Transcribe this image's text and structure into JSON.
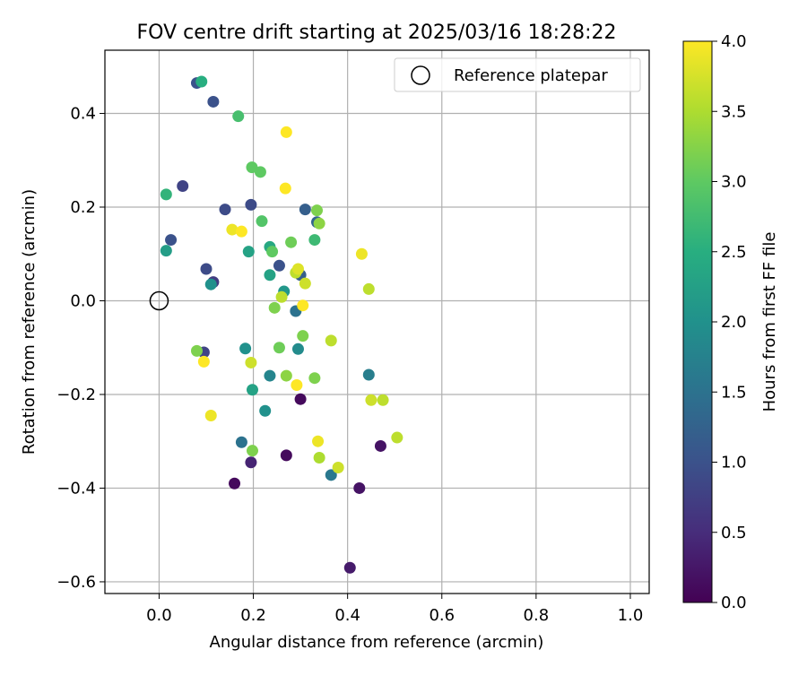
{
  "chart_data": {
    "type": "scatter",
    "title": "FOV centre drift starting at 2025/03/16 18:28:22",
    "xlabel": "Angular distance from reference (arcmin)",
    "ylabel": "Rotation from reference (arcmin)",
    "xlim": [
      -0.115,
      1.04
    ],
    "ylim": [
      -0.625,
      0.535
    ],
    "xticks": [
      0.0,
      0.2,
      0.4,
      0.6,
      0.8,
      1.0
    ],
    "xtick_labels": [
      "0.0",
      "0.2",
      "0.4",
      "0.6",
      "0.8",
      "1.0"
    ],
    "yticks": [
      -0.6,
      -0.4,
      -0.2,
      0.0,
      0.2,
      0.4
    ],
    "ytick_labels": [
      "−0.6",
      "−0.4",
      "−0.2",
      "0.0",
      "0.2",
      "0.4"
    ],
    "grid": true,
    "legend": {
      "placement": "top-right",
      "label": "Reference platepar"
    },
    "reference_point": {
      "x": 0.0,
      "y": 0.0
    },
    "colorbar": {
      "label": "Hours from first FF file",
      "colormap": "viridis",
      "range": [
        0.0,
        4.0
      ],
      "ticks": [
        0.0,
        0.5,
        1.0,
        1.5,
        2.0,
        2.5,
        3.0,
        3.5,
        4.0
      ],
      "tick_labels": [
        "0.0",
        "0.5",
        "1.0",
        "1.5",
        "2.0",
        "2.5",
        "3.0",
        "3.5",
        "4.0"
      ]
    },
    "points": [
      {
        "x": 0.405,
        "y": -0.57,
        "hours": 0.3
      },
      {
        "x": 0.16,
        "y": -0.39,
        "hours": 0.1
      },
      {
        "x": 0.425,
        "y": -0.4,
        "hours": 0.2
      },
      {
        "x": 0.195,
        "y": -0.345,
        "hours": 0.4
      },
      {
        "x": 0.27,
        "y": -0.33,
        "hours": 0.1
      },
      {
        "x": 0.3,
        "y": -0.21,
        "hours": 0.1
      },
      {
        "x": 0.47,
        "y": -0.31,
        "hours": 0.2
      },
      {
        "x": 0.08,
        "y": 0.465,
        "hours": 1.0
      },
      {
        "x": 0.115,
        "y": 0.425,
        "hours": 1.0
      },
      {
        "x": 0.05,
        "y": 0.245,
        "hours": 0.8
      },
      {
        "x": 0.14,
        "y": 0.195,
        "hours": 0.9
      },
      {
        "x": 0.195,
        "y": 0.205,
        "hours": 0.9
      },
      {
        "x": 0.025,
        "y": 0.13,
        "hours": 1.0
      },
      {
        "x": 0.1,
        "y": 0.068,
        "hours": 0.9
      },
      {
        "x": 0.115,
        "y": 0.04,
        "hours": 0.7
      },
      {
        "x": 0.095,
        "y": -0.11,
        "hours": 0.8
      },
      {
        "x": 0.255,
        "y": 0.075,
        "hours": 1.0
      },
      {
        "x": 0.31,
        "y": 0.195,
        "hours": 1.2
      },
      {
        "x": 0.3,
        "y": 0.055,
        "hours": 1.2
      },
      {
        "x": 0.335,
        "y": 0.168,
        "hours": 1.3
      },
      {
        "x": 0.29,
        "y": -0.022,
        "hours": 1.5
      },
      {
        "x": 0.365,
        "y": -0.372,
        "hours": 1.6
      },
      {
        "x": 0.175,
        "y": -0.302,
        "hours": 1.5
      },
      {
        "x": 0.445,
        "y": -0.158,
        "hours": 1.7
      },
      {
        "x": 0.235,
        "y": -0.16,
        "hours": 1.8
      },
      {
        "x": 0.225,
        "y": -0.235,
        "hours": 2.0
      },
      {
        "x": 0.295,
        "y": -0.103,
        "hours": 1.9
      },
      {
        "x": 0.183,
        "y": -0.102,
        "hours": 2.0
      },
      {
        "x": 0.015,
        "y": 0.107,
        "hours": 2.2
      },
      {
        "x": 0.11,
        "y": 0.035,
        "hours": 2.0
      },
      {
        "x": 0.265,
        "y": 0.02,
        "hours": 2.1
      },
      {
        "x": 0.235,
        "y": 0.055,
        "hours": 2.3
      },
      {
        "x": 0.19,
        "y": 0.105,
        "hours": 2.3
      },
      {
        "x": 0.235,
        "y": 0.115,
        "hours": 2.4
      },
      {
        "x": 0.198,
        "y": -0.19,
        "hours": 2.3
      },
      {
        "x": 0.09,
        "y": 0.468,
        "hours": 2.5
      },
      {
        "x": 0.015,
        "y": 0.227,
        "hours": 2.6
      },
      {
        "x": 0.33,
        "y": 0.13,
        "hours": 2.7
      },
      {
        "x": 0.168,
        "y": 0.394,
        "hours": 2.8
      },
      {
        "x": 0.218,
        "y": 0.17,
        "hours": 2.9
      },
      {
        "x": 0.197,
        "y": 0.285,
        "hours": 3.0
      },
      {
        "x": 0.215,
        "y": 0.275,
        "hours": 3.0
      },
      {
        "x": 0.24,
        "y": 0.105,
        "hours": 3.0
      },
      {
        "x": 0.28,
        "y": 0.125,
        "hours": 3.1
      },
      {
        "x": 0.335,
        "y": 0.193,
        "hours": 3.2
      },
      {
        "x": 0.34,
        "y": 0.165,
        "hours": 3.3
      },
      {
        "x": 0.08,
        "y": -0.107,
        "hours": 3.2
      },
      {
        "x": 0.245,
        "y": -0.015,
        "hours": 3.2
      },
      {
        "x": 0.255,
        "y": -0.1,
        "hours": 3.1
      },
      {
        "x": 0.305,
        "y": -0.075,
        "hours": 3.2
      },
      {
        "x": 0.27,
        "y": -0.16,
        "hours": 3.3
      },
      {
        "x": 0.33,
        "y": -0.165,
        "hours": 3.2
      },
      {
        "x": 0.198,
        "y": -0.32,
        "hours": 3.2
      },
      {
        "x": 0.34,
        "y": -0.335,
        "hours": 3.5
      },
      {
        "x": 0.26,
        "y": 0.008,
        "hours": 3.6
      },
      {
        "x": 0.29,
        "y": 0.06,
        "hours": 3.6
      },
      {
        "x": 0.295,
        "y": 0.068,
        "hours": 3.8
      },
      {
        "x": 0.31,
        "y": 0.037,
        "hours": 3.7
      },
      {
        "x": 0.365,
        "y": -0.085,
        "hours": 3.6
      },
      {
        "x": 0.445,
        "y": 0.025,
        "hours": 3.6
      },
      {
        "x": 0.45,
        "y": -0.212,
        "hours": 3.7
      },
      {
        "x": 0.475,
        "y": -0.212,
        "hours": 3.6
      },
      {
        "x": 0.505,
        "y": -0.292,
        "hours": 3.6
      },
      {
        "x": 0.38,
        "y": -0.356,
        "hours": 3.7
      },
      {
        "x": 0.195,
        "y": -0.132,
        "hours": 3.7
      },
      {
        "x": 0.155,
        "y": 0.152,
        "hours": 3.9
      },
      {
        "x": 0.175,
        "y": 0.148,
        "hours": 4.0
      },
      {
        "x": 0.268,
        "y": 0.24,
        "hours": 4.0
      },
      {
        "x": 0.27,
        "y": 0.36,
        "hours": 4.0
      },
      {
        "x": 0.305,
        "y": -0.01,
        "hours": 4.0
      },
      {
        "x": 0.292,
        "y": -0.18,
        "hours": 4.0
      },
      {
        "x": 0.337,
        "y": -0.3,
        "hours": 3.9
      },
      {
        "x": 0.11,
        "y": -0.245,
        "hours": 3.9
      },
      {
        "x": 0.095,
        "y": -0.13,
        "hours": 4.0
      },
      {
        "x": 0.43,
        "y": 0.1,
        "hours": 3.9
      }
    ]
  }
}
